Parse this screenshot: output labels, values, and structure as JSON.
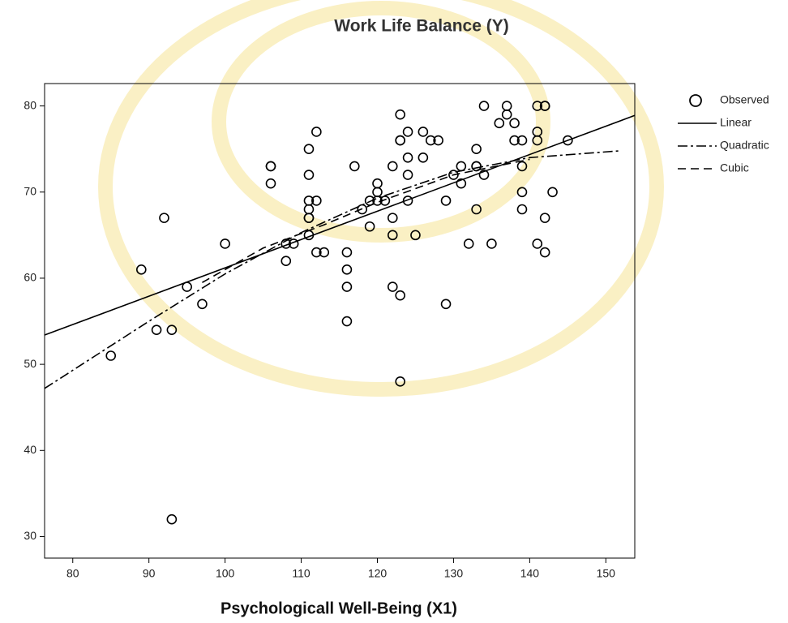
{
  "chart_data": {
    "type": "scatter",
    "title": "Work  Life Balance (Y)",
    "x_label": "Psychologicall Well-Being (X1)",
    "xlim": [
      76.3,
      153.8
    ],
    "ylim": [
      27.5,
      82.6
    ],
    "xticks": [
      80,
      90,
      100,
      110,
      120,
      130,
      140,
      150
    ],
    "yticks": [
      30,
      40,
      50,
      60,
      70,
      80
    ],
    "color": "#000000",
    "series": [
      {
        "name": "Observed",
        "type": "scatter",
        "color": "#000000",
        "x": [
          85,
          89,
          91,
          92,
          93,
          93,
          95,
          97,
          100,
          106,
          106,
          106,
          108,
          108,
          109,
          111,
          111,
          111,
          111,
          111,
          111,
          111,
          112,
          112,
          112,
          113,
          116,
          116,
          116,
          116,
          117,
          118,
          119,
          119,
          120,
          120,
          120,
          121,
          122,
          122,
          122,
          122,
          123,
          123,
          123,
          123,
          123,
          124,
          124,
          124,
          124,
          125,
          126,
          126,
          127,
          128,
          129,
          129,
          130,
          131,
          131,
          132,
          133,
          133,
          133,
          133,
          134,
          134,
          135,
          136,
          137,
          137,
          138,
          138,
          139,
          139,
          139,
          139,
          141,
          141,
          141,
          141,
          142,
          142,
          142,
          142,
          143,
          145
        ],
        "values": [
          51,
          61,
          54,
          67,
          54,
          32,
          59,
          57,
          64,
          73,
          73,
          71,
          64,
          62,
          64,
          75,
          72,
          69,
          68,
          67,
          67,
          65,
          77,
          69,
          63,
          63,
          63,
          61,
          59,
          55,
          73,
          68,
          69,
          66,
          71,
          70,
          69,
          69,
          73,
          67,
          65,
          59,
          79,
          76,
          76,
          58,
          48,
          77,
          74,
          72,
          69,
          65,
          77,
          74,
          76,
          76,
          69,
          57,
          72,
          73,
          71,
          64,
          75,
          73,
          73,
          68,
          80,
          72,
          64,
          78,
          80,
          79,
          78,
          76,
          76,
          73,
          70,
          68,
          80,
          77,
          76,
          64,
          80,
          80,
          67,
          63,
          70,
          76
        ]
      },
      {
        "name": "Linear",
        "type": "line",
        "color": "#000000",
        "x": [
          76.3,
          153.8
        ],
        "values": [
          53.4,
          78.9
        ]
      },
      {
        "name": "Quadratic",
        "type": "line",
        "color": "#000000",
        "x": [
          76.3,
          90,
          100,
          110,
          120,
          130,
          140,
          152
        ],
        "values": [
          47.2,
          55,
          60.5,
          65.3,
          69.3,
          72.3,
          74,
          74.8
        ]
      },
      {
        "name": "Cubic",
        "type": "line",
        "color": "#000000",
        "x": [
          97,
          105,
          113,
          120,
          130,
          140
        ],
        "values": [
          59.5,
          63.5,
          66.2,
          68.8,
          72,
          73.8
        ]
      }
    ]
  }
}
